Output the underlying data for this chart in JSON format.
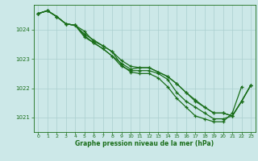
{
  "bg_color": "#cce8e8",
  "grid_color": "#aacfcf",
  "line_color": "#1a6e1a",
  "marker_color": "#1a6e1a",
  "text_color": "#1a6e1a",
  "xlabel": "Graphe pression niveau de la mer (hPa)",
  "xlim": [
    -0.5,
    23.5
  ],
  "ylim": [
    1020.5,
    1024.85
  ],
  "yticks": [
    1021,
    1022,
    1023,
    1024
  ],
  "xticks": [
    0,
    1,
    2,
    3,
    4,
    5,
    6,
    7,
    8,
    9,
    10,
    11,
    12,
    13,
    14,
    15,
    16,
    17,
    18,
    19,
    20,
    21,
    22,
    23
  ],
  "series": [
    [
      1024.55,
      1024.65,
      1024.45,
      1024.2,
      1024.15,
      1023.95,
      1023.6,
      1023.45,
      1023.25,
      1022.8,
      1022.55,
      1022.5,
      1022.5,
      1022.35,
      1022.05,
      1021.65,
      1021.35,
      1021.05,
      1020.95,
      1020.85,
      1020.85,
      1021.15,
      1022.05,
      null
    ],
    [
      1024.55,
      1024.65,
      1024.45,
      1024.2,
      1024.15,
      1023.8,
      1023.55,
      1023.35,
      1023.1,
      1022.75,
      1022.6,
      1022.6,
      1022.6,
      1022.5,
      1022.3,
      1021.85,
      1021.55,
      1021.35,
      1021.15,
      1020.95,
      1020.95,
      1021.05,
      1021.55,
      1022.1
    ],
    [
      1024.55,
      1024.65,
      1024.45,
      1024.2,
      1024.15,
      1023.75,
      1023.55,
      1023.35,
      1023.1,
      1022.85,
      1022.65,
      1022.7,
      1022.7,
      1022.55,
      1022.4,
      1022.15,
      1021.85,
      1021.6,
      1021.35,
      1021.15,
      1021.15,
      1021.05,
      1021.55,
      1022.1
    ],
    [
      1024.55,
      1024.65,
      1024.45,
      1024.2,
      1024.15,
      1023.85,
      1023.65,
      1023.45,
      1023.25,
      1022.95,
      1022.75,
      1022.7,
      1022.7,
      1022.55,
      1022.4,
      1022.15,
      1021.85,
      1021.55,
      1021.35,
      1021.15,
      1021.15,
      1021.05,
      1021.55,
      1022.1
    ]
  ]
}
